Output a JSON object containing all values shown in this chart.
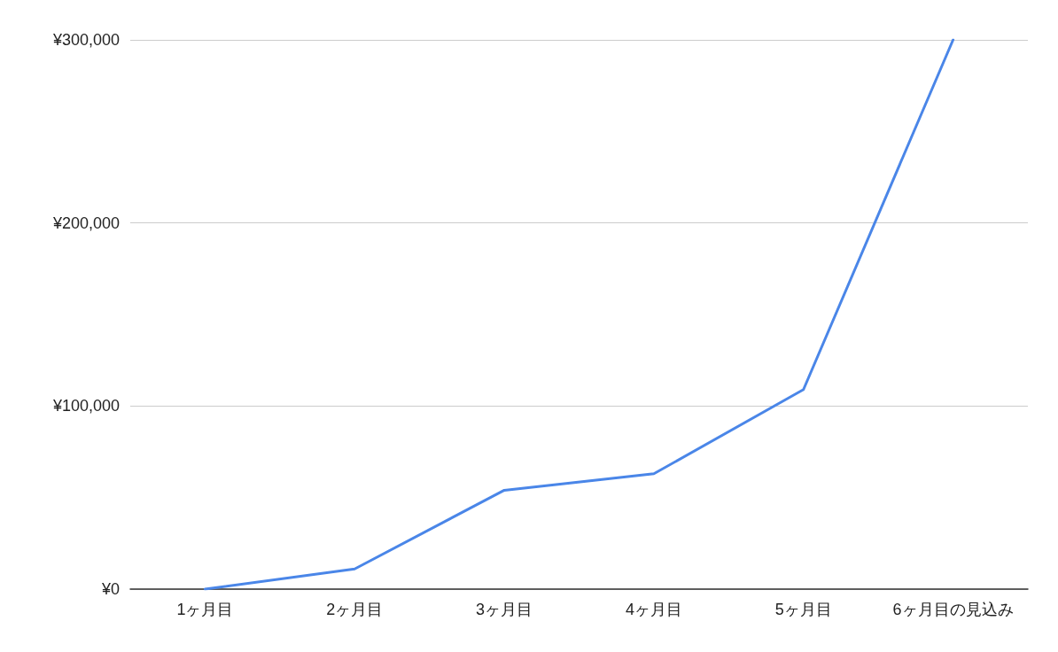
{
  "chart_data": {
    "type": "line",
    "categories": [
      "1ヶ月目",
      "2ヶ月目",
      "3ヶ月目",
      "4ヶ月目",
      "5ヶ月目",
      "6ヶ月目の見込み"
    ],
    "series": [
      {
        "color": "#4a86e8",
        "values": [
          0,
          11000,
          54000,
          63000,
          109000,
          300000
        ]
      }
    ],
    "ylim": [
      0,
      300000
    ],
    "yticks": [
      {
        "value": 0,
        "label": "¥0"
      },
      {
        "value": 100000,
        "label": "¥100,000"
      },
      {
        "value": 200000,
        "label": "¥200,000"
      },
      {
        "value": 300000,
        "label": "¥300,000"
      }
    ],
    "grid": "y",
    "marker": "none",
    "line_style": "solid"
  }
}
